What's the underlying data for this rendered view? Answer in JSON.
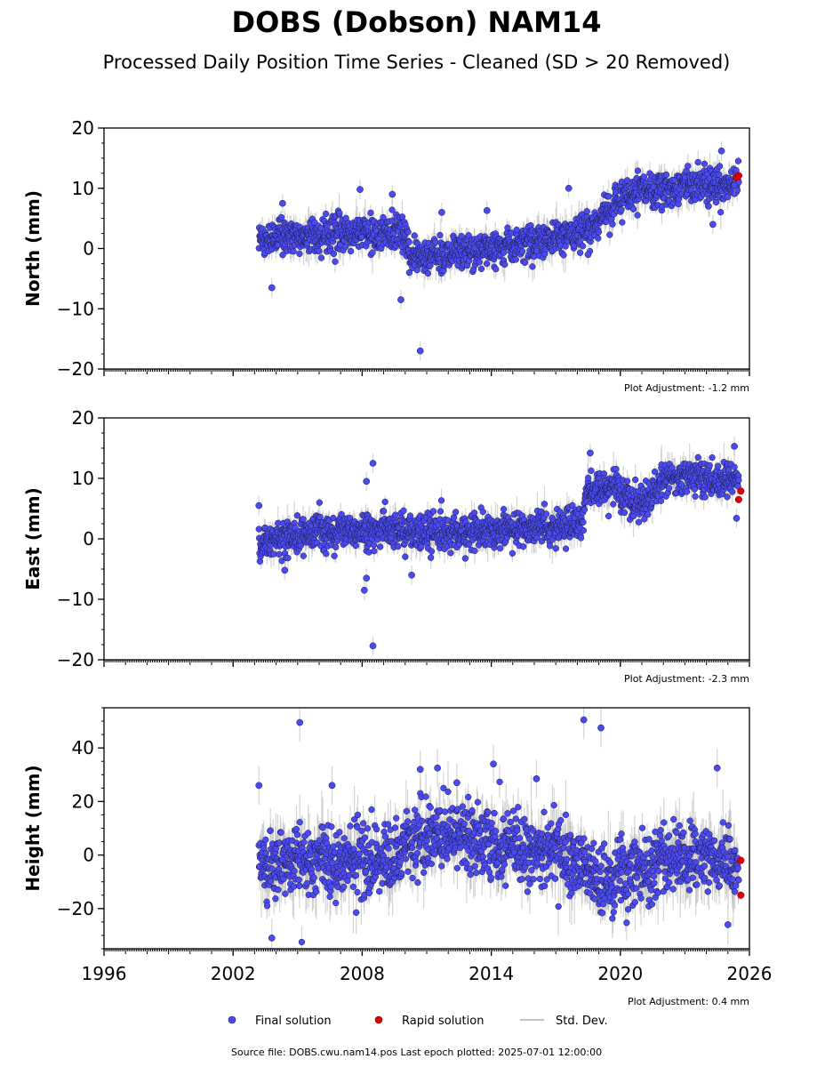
{
  "title": "DOBS (Dobson) NAM14",
  "subtitle": "Processed Daily Position Time Series - Cleaned (SD > 20 Removed)",
  "source_note": "Source file: DOBS.cwu.nam14.pos  Last epoch plotted: 2025-07-01 12:00:00",
  "legend": {
    "final": "Final solution",
    "rapid": "Rapid solution",
    "std": "Std. Dev."
  },
  "colors": {
    "final": "#4a4af0",
    "final_edge": "#1a1a40",
    "rapid": "#e00000",
    "std": "#b0b0b0"
  },
  "chart_data": [
    {
      "type": "scatter",
      "ylabel": "North (mm)",
      "ylim": [
        -20,
        20
      ],
      "yticks": [
        -20,
        -10,
        0,
        10,
        20
      ],
      "xlim": [
        1996,
        2026
      ],
      "xticks": [
        1996,
        2002,
        2008,
        2014,
        2020,
        2026
      ],
      "show_xtick_labels": false,
      "adjustment": "Plot Adjustment: -1.2 mm",
      "final_trend": [
        [
          2003.2,
          1.5
        ],
        [
          2006,
          2.5
        ],
        [
          2009.9,
          2.5
        ],
        [
          2010.2,
          -1.5
        ],
        [
          2013,
          -0.5
        ],
        [
          2016,
          1
        ],
        [
          2018.5,
          3
        ],
        [
          2020,
          8.5
        ],
        [
          2022,
          10
        ],
        [
          2025.5,
          11
        ]
      ],
      "final_scatter": 2.0,
      "final_outliers": [
        [
          2003.8,
          -6.5
        ],
        [
          2004.3,
          7.5
        ],
        [
          2007.9,
          9.8
        ],
        [
          2009.4,
          9
        ],
        [
          2009.8,
          -8.5
        ],
        [
          2010.7,
          -17
        ],
        [
          2011.7,
          6
        ],
        [
          2013.8,
          6.3
        ],
        [
          2017.6,
          10
        ],
        [
          2018.5,
          -1
        ],
        [
          2024.7,
          16.2
        ],
        [
          2024.3,
          4
        ],
        [
          2025.3,
          10.5
        ]
      ],
      "rapid": [
        [
          2025.4,
          11.8
        ],
        [
          2025.5,
          12.1
        ]
      ]
    },
    {
      "type": "scatter",
      "ylabel": "East (mm)",
      "ylim": [
        -20,
        20
      ],
      "yticks": [
        -20,
        -10,
        0,
        10,
        20
      ],
      "xlim": [
        1996,
        2026
      ],
      "xticks": [
        1996,
        2002,
        2008,
        2014,
        2020,
        2026
      ],
      "show_xtick_labels": false,
      "adjustment": "Plot Adjustment: -2.3 mm",
      "final_trend": [
        [
          2003.2,
          -0.5
        ],
        [
          2006,
          1
        ],
        [
          2009,
          1.5
        ],
        [
          2012,
          1
        ],
        [
          2015,
          1.5
        ],
        [
          2018.2,
          2.5
        ],
        [
          2018.5,
          8
        ],
        [
          2020,
          8
        ],
        [
          2021,
          5
        ],
        [
          2022,
          10
        ],
        [
          2025.5,
          10
        ]
      ],
      "final_scatter": 2.0,
      "final_outliers": [
        [
          2003.2,
          5.5
        ],
        [
          2004.4,
          -5.2
        ],
        [
          2008.2,
          9.5
        ],
        [
          2008.2,
          -6.5
        ],
        [
          2008.5,
          12.5
        ],
        [
          2008.5,
          -17.7
        ],
        [
          2008.1,
          -8.5
        ],
        [
          2010.3,
          -6
        ],
        [
          2018.6,
          14.2
        ],
        [
          2025.4,
          3.4
        ],
        [
          2025.3,
          15.3
        ]
      ],
      "rapid": [
        [
          2025.5,
          6.5
        ],
        [
          2025.6,
          7.9
        ]
      ]
    },
    {
      "type": "scatter",
      "ylabel": "Height (mm)",
      "ylim": [
        -35,
        55
      ],
      "yticks": [
        -20,
        0,
        20,
        40
      ],
      "xlim": [
        1996,
        2026
      ],
      "xticks": [
        1996,
        2002,
        2008,
        2014,
        2020,
        2026
      ],
      "show_xtick_labels": true,
      "adjustment": "Plot Adjustment: 0.4 mm",
      "final_trend": [
        [
          2003.2,
          -3
        ],
        [
          2006,
          -2
        ],
        [
          2009,
          -3
        ],
        [
          2010.2,
          6
        ],
        [
          2012,
          8
        ],
        [
          2015,
          2
        ],
        [
          2017,
          3
        ],
        [
          2019,
          -10
        ],
        [
          2021,
          -5
        ],
        [
          2023,
          0
        ],
        [
          2025.5,
          -3
        ]
      ],
      "final_scatter": 9.0,
      "final_outliers": [
        [
          2003.2,
          26
        ],
        [
          2003.8,
          -31
        ],
        [
          2005.1,
          49.5
        ],
        [
          2006.6,
          26
        ],
        [
          2010.7,
          32
        ],
        [
          2011.5,
          32.5
        ],
        [
          2012.4,
          27
        ],
        [
          2014.1,
          34
        ],
        [
          2016.1,
          28.5
        ],
        [
          2018.3,
          50.5
        ],
        [
          2019.1,
          47.5
        ],
        [
          2024.5,
          32.5
        ],
        [
          2025,
          -26
        ]
      ],
      "rapid": [
        [
          2025.6,
          -2
        ],
        [
          2025.6,
          -15
        ]
      ]
    }
  ]
}
